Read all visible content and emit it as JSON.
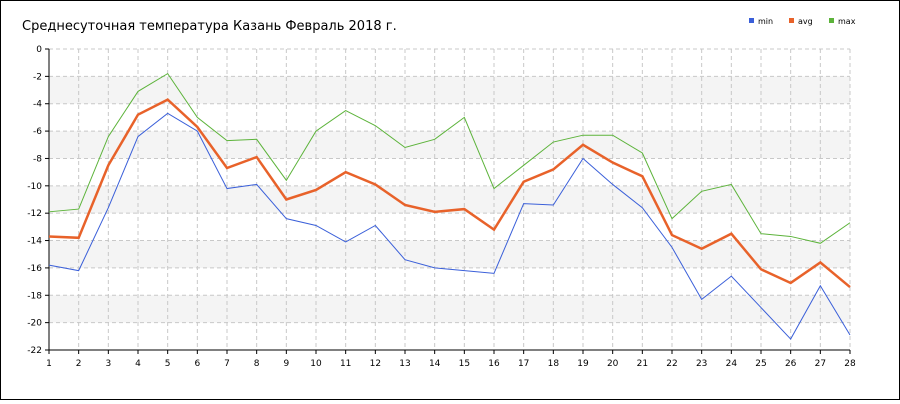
{
  "chart_data": {
    "type": "line",
    "title": "Среднесуточная температура Казань  Февраль 2018 г.",
    "categories": [
      "1",
      "2",
      "3",
      "4",
      "5",
      "6",
      "7",
      "8",
      "9",
      "10",
      "11",
      "12",
      "13",
      "14",
      "15",
      "16",
      "17",
      "18",
      "19",
      "20",
      "21",
      "22",
      "23",
      "24",
      "25",
      "26",
      "27",
      "28"
    ],
    "series": [
      {
        "name": "min",
        "color": "#3a5fd9",
        "values": [
          -15.8,
          -16.2,
          -11.6,
          -6.4,
          -4.7,
          -6.0,
          -10.2,
          -9.9,
          -12.4,
          -12.9,
          -14.1,
          -12.9,
          -15.4,
          -16.0,
          -16.2,
          -16.4,
          -11.3,
          -11.4,
          -8.0,
          -9.9,
          -11.6,
          -14.5,
          -18.3,
          -16.6,
          -18.9,
          -21.2,
          -17.3,
          -20.9
        ]
      },
      {
        "name": "avg",
        "color": "#e8622a",
        "values": [
          -13.7,
          -13.8,
          -8.5,
          -4.8,
          -3.7,
          -5.7,
          -8.7,
          -7.9,
          -11.0,
          -10.3,
          -9.0,
          -9.9,
          -11.4,
          -11.9,
          -11.7,
          -13.2,
          -9.7,
          -8.8,
          -7.0,
          -8.3,
          -9.3,
          -13.6,
          -14.6,
          -13.5,
          -16.1,
          -17.1,
          -15.6,
          -17.4
        ]
      },
      {
        "name": "max",
        "color": "#5cb33a",
        "values": [
          -11.9,
          -11.7,
          -6.4,
          -3.1,
          -1.8,
          -5.0,
          -6.7,
          -6.6,
          -9.6,
          -6.0,
          -4.5,
          -5.6,
          -7.2,
          -6.6,
          -5.0,
          -10.2,
          -8.5,
          -6.8,
          -6.3,
          -6.3,
          -7.6,
          -12.4,
          -10.4,
          -9.9,
          -13.5,
          -13.7,
          -14.2,
          -12.7
        ]
      }
    ],
    "ylim": [
      -22,
      0
    ],
    "yticks": [
      -22,
      -20,
      -18,
      -16,
      -14,
      -12,
      -10,
      -8,
      -6,
      -4,
      -2,
      0
    ],
    "grid": true,
    "legend": "top-right"
  }
}
